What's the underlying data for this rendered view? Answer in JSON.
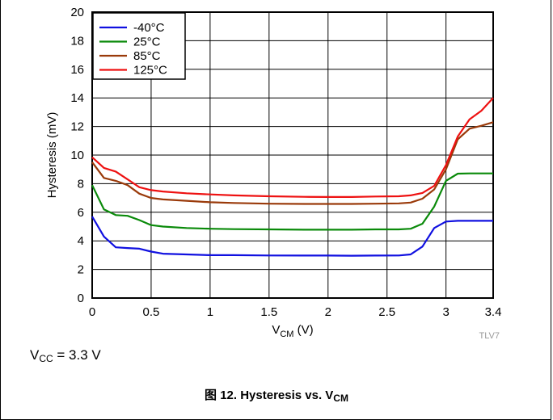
{
  "chart_data": {
    "type": "line",
    "xlabel_main": "V",
    "xlabel_sub": "CM",
    "xlabel_unit": " (V)",
    "ylabel": "Hysteresis (mV)",
    "xlim": [
      0,
      3.4
    ],
    "ylim": [
      0,
      20
    ],
    "xticks": [
      0,
      0.5,
      1,
      1.5,
      2,
      2.5,
      3,
      3.4
    ],
    "xtick_labels": [
      "0",
      "0.5",
      "1",
      "1.5",
      "2",
      "2.5",
      "3",
      "3.4"
    ],
    "yticks": [
      0,
      2,
      4,
      6,
      8,
      10,
      12,
      14,
      16,
      18,
      20
    ],
    "ytick_labels": [
      "0",
      "2",
      "4",
      "6",
      "8",
      "10",
      "12",
      "14",
      "16",
      "18",
      "20"
    ],
    "grid": true,
    "legend_position": "top-left",
    "watermark": "TLV7",
    "series": [
      {
        "name": "-40°C",
        "color": "#1010e0",
        "x": [
          0,
          0.1,
          0.2,
          0.3,
          0.4,
          0.5,
          0.6,
          0.8,
          1.0,
          1.2,
          1.5,
          1.8,
          2.0,
          2.2,
          2.4,
          2.6,
          2.7,
          2.8,
          2.9,
          3.0,
          3.1,
          3.2,
          3.4
        ],
        "y": [
          5.7,
          4.3,
          3.55,
          3.5,
          3.45,
          3.25,
          3.1,
          3.05,
          3.0,
          3.0,
          2.98,
          2.97,
          2.97,
          2.96,
          2.97,
          2.98,
          3.05,
          3.6,
          4.9,
          5.35,
          5.4,
          5.4,
          5.4
        ]
      },
      {
        "name": "25°C",
        "color": "#0a8a0a",
        "x": [
          0,
          0.1,
          0.2,
          0.3,
          0.4,
          0.5,
          0.6,
          0.8,
          1.0,
          1.2,
          1.5,
          1.8,
          2.0,
          2.2,
          2.4,
          2.6,
          2.7,
          2.8,
          2.9,
          3.0,
          3.1,
          3.2,
          3.4
        ],
        "y": [
          7.9,
          6.2,
          5.8,
          5.75,
          5.45,
          5.1,
          5.0,
          4.9,
          4.85,
          4.82,
          4.8,
          4.78,
          4.78,
          4.78,
          4.8,
          4.8,
          4.85,
          5.2,
          6.4,
          8.2,
          8.7,
          8.72,
          8.72
        ]
      },
      {
        "name": "85°C",
        "color": "#9a3a0a",
        "x": [
          0,
          0.1,
          0.2,
          0.3,
          0.4,
          0.5,
          0.6,
          0.8,
          1.0,
          1.2,
          1.5,
          1.8,
          2.0,
          2.2,
          2.4,
          2.6,
          2.7,
          2.8,
          2.9,
          3.0,
          3.1,
          3.2,
          3.3,
          3.4
        ],
        "y": [
          9.5,
          8.4,
          8.2,
          7.9,
          7.3,
          7.0,
          6.9,
          6.8,
          6.7,
          6.65,
          6.6,
          6.58,
          6.58,
          6.58,
          6.6,
          6.62,
          6.68,
          6.95,
          7.6,
          9.0,
          11.1,
          11.85,
          12.05,
          12.3
        ]
      },
      {
        "name": "125°C",
        "color": "#ee1111",
        "x": [
          0,
          0.1,
          0.2,
          0.3,
          0.4,
          0.5,
          0.6,
          0.8,
          1.0,
          1.2,
          1.5,
          1.8,
          2.0,
          2.2,
          2.4,
          2.6,
          2.7,
          2.8,
          2.9,
          3.0,
          3.1,
          3.2,
          3.3,
          3.4
        ],
        "y": [
          9.85,
          9.1,
          8.85,
          8.3,
          7.75,
          7.55,
          7.45,
          7.33,
          7.25,
          7.18,
          7.12,
          7.08,
          7.07,
          7.07,
          7.1,
          7.12,
          7.18,
          7.35,
          7.85,
          9.3,
          11.3,
          12.5,
          13.1,
          14.0
        ]
      }
    ]
  },
  "condition": {
    "main": "V",
    "sub": "CC",
    "rest": " = 3.3 V"
  },
  "caption": {
    "prefix": "图 12. Hysteresis vs. V",
    "sub": "CM"
  }
}
